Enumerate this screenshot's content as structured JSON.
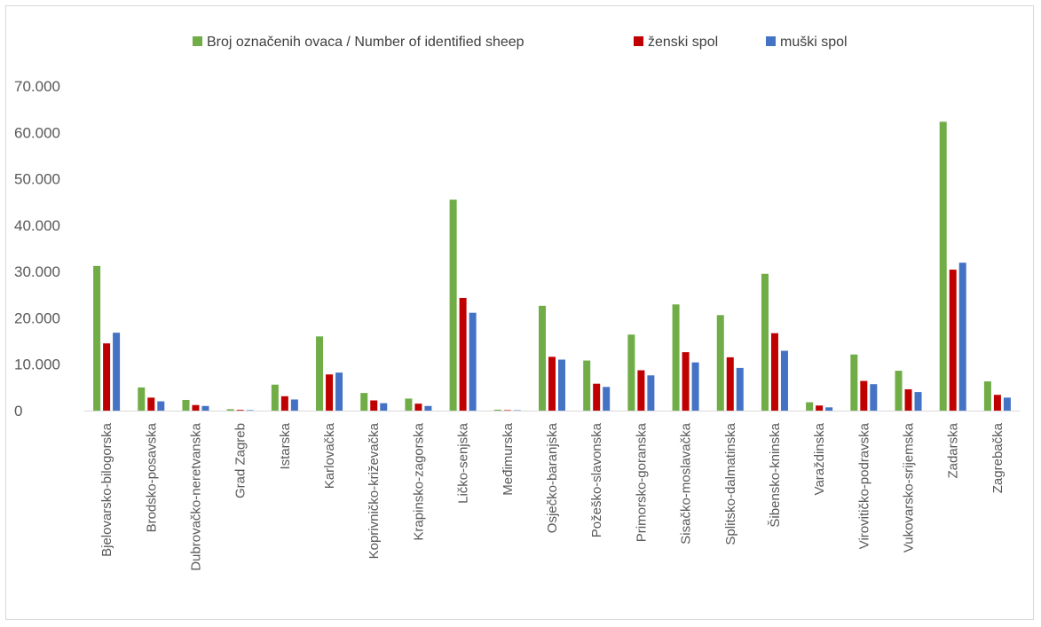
{
  "chart_data": {
    "type": "bar",
    "title": "",
    "xlabel": "",
    "ylabel": "",
    "ylim": [
      0,
      70000
    ],
    "yticks": [
      0,
      10000,
      20000,
      30000,
      40000,
      50000,
      60000,
      70000
    ],
    "ytick_labels": [
      "0",
      "10.000",
      "20.000",
      "30.000",
      "40.000",
      "50.000",
      "60.000",
      "70.000"
    ],
    "grid": false,
    "legend_position": "top",
    "categories": [
      "Bjelovarsko-bilogorska",
      "Brodsko-posavska",
      "Dubrovačko-neretvanska",
      "Grad Zagreb",
      "Istarska",
      "Karlovačka",
      "Koprivničko-križevačka",
      "Krapinsko-zagorska",
      "Ličko-senjska",
      "Međimurska",
      "Osječko-baranjska",
      "Požeško-slavonska",
      "Primorsko-goranska",
      "Sisačko-moslavačka",
      "Splitsko-dalmatinska",
      "Šibensko-kninska",
      "Varaždinska",
      "Virovitičko-podravska",
      "Vukovarsko-srijemska",
      "Zadarska",
      "Zagrebačka"
    ],
    "series": [
      {
        "name": "Broj označenih ovaca / Number of identified sheep",
        "color": "#70ad47",
        "values": [
          31200,
          5000,
          2300,
          300,
          5600,
          16000,
          3800,
          2600,
          45500,
          200,
          22600,
          10800,
          16400,
          22900,
          20600,
          29500,
          1800,
          12100,
          8600,
          62300,
          6300
        ]
      },
      {
        "name": "ženski spol",
        "color": "#c00000",
        "values": [
          14500,
          2800,
          1200,
          150,
          3100,
          7800,
          2200,
          1500,
          24300,
          100,
          11600,
          5800,
          8700,
          12600,
          11500,
          16700,
          1100,
          6400,
          4600,
          30400,
          3400
        ]
      },
      {
        "name": "muški spol",
        "color": "#4472c4",
        "values": [
          16800,
          2000,
          1000,
          100,
          2400,
          8200,
          1600,
          1000,
          21100,
          80,
          11000,
          5100,
          7600,
          10400,
          9200,
          12900,
          700,
          5700,
          4000,
          31900,
          2800
        ]
      }
    ]
  }
}
